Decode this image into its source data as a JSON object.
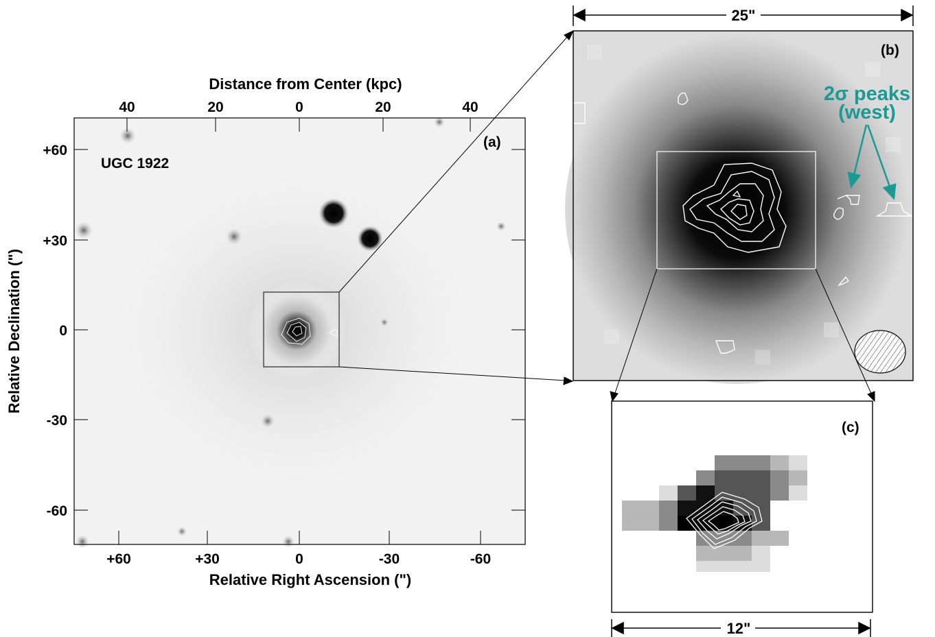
{
  "panel_a": {
    "label": "(a)",
    "object_name": "UGC 1922",
    "top_axis_title": "Distance from Center (kpc)",
    "top_ticks": [
      "40",
      "20",
      "0",
      "20",
      "40"
    ],
    "bottom_axis_title": "Relative Right Ascension (\")",
    "bottom_ticks": [
      "+60",
      "+30",
      "0",
      "-30",
      "-60"
    ],
    "left_axis_title": "Relative Declination (\")",
    "left_ticks": [
      "+60",
      "+30",
      "0",
      "-30",
      "-60"
    ]
  },
  "panel_b": {
    "label": "(b)",
    "scale_label": "25\"",
    "annotation_line1": "2σ peaks",
    "annotation_line2": "(west)"
  },
  "panel_c": {
    "label": "(c)",
    "scale_label": "12\""
  },
  "colors": {
    "annotation": "#1a9a92",
    "contours": "#ffffff"
  }
}
